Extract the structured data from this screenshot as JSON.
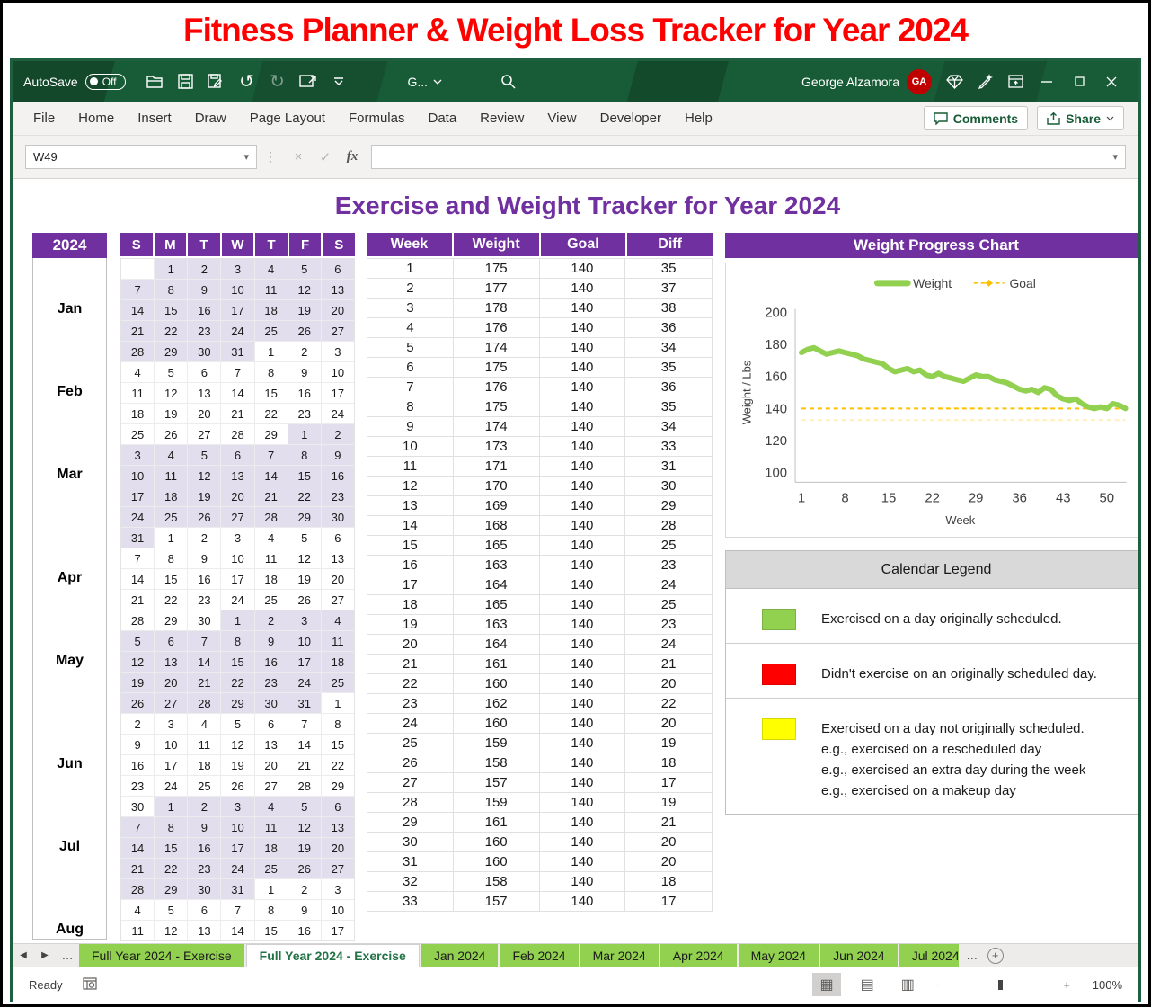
{
  "banner": {
    "title": "Fitness Planner & Weight Loss Tracker for Year 2024"
  },
  "titlebar": {
    "autosave_label": "AutoSave",
    "autosave_state": "Off",
    "doc_name": "G...",
    "user_name": "George Alzamora",
    "user_initials": "GA"
  },
  "icons": {
    "undo": "↺",
    "redo": "↻",
    "dropdown": "▾",
    "cancel": "×",
    "check": "✓",
    "fx": "fx",
    "nav_left": "◀",
    "nav_right": "▶",
    "overflow": "…",
    "add_sheet": "+",
    "view_normal": "▦",
    "view_layout": "▤",
    "view_break": "▥",
    "zoom_out": "−",
    "zoom_in": "+"
  },
  "ribbon": {
    "tabs": [
      "File",
      "Home",
      "Insert",
      "Draw",
      "Page Layout",
      "Formulas",
      "Data",
      "Review",
      "View",
      "Developer",
      "Help"
    ],
    "comments_label": "Comments",
    "share_label": "Share"
  },
  "formula_bar": {
    "name_box": "W49",
    "formula_value": ""
  },
  "sheet": {
    "title": "Exercise and Weight Tracker for Year 2024",
    "year": "2024",
    "weekday_headers": [
      "S",
      "M",
      "T",
      "W",
      "T",
      "F",
      "S"
    ],
    "months": [
      {
        "label": "Jan",
        "row": 2
      },
      {
        "label": "Feb",
        "row": 6
      },
      {
        "label": "Mar",
        "row": 10
      },
      {
        "label": "Apr",
        "row": 15
      },
      {
        "label": "May",
        "row": 19
      },
      {
        "label": "Jun",
        "row": 24
      },
      {
        "label": "Jul",
        "row": 28
      },
      {
        "label": "Aug",
        "row": 32
      }
    ],
    "calendar_rows": [
      {
        "d": [
          null,
          1,
          2,
          3,
          4,
          5,
          6
        ],
        "s": [
          0,
          1,
          1,
          1,
          1,
          1,
          1
        ]
      },
      {
        "d": [
          7,
          8,
          9,
          10,
          11,
          12,
          13
        ],
        "s": [
          1,
          1,
          1,
          1,
          1,
          1,
          1
        ]
      },
      {
        "d": [
          14,
          15,
          16,
          17,
          18,
          19,
          20
        ],
        "s": [
          1,
          1,
          1,
          1,
          1,
          1,
          1
        ]
      },
      {
        "d": [
          21,
          22,
          23,
          24,
          25,
          26,
          27
        ],
        "s": [
          1,
          1,
          1,
          1,
          1,
          1,
          1
        ]
      },
      {
        "d": [
          28,
          29,
          30,
          31,
          1,
          2,
          3
        ],
        "s": [
          1,
          1,
          1,
          1,
          0,
          0,
          0
        ]
      },
      {
        "d": [
          4,
          5,
          6,
          7,
          8,
          9,
          10
        ],
        "s": [
          0,
          0,
          0,
          0,
          0,
          0,
          0
        ]
      },
      {
        "d": [
          11,
          12,
          13,
          14,
          15,
          16,
          17
        ],
        "s": [
          0,
          0,
          0,
          0,
          0,
          0,
          0
        ]
      },
      {
        "d": [
          18,
          19,
          20,
          21,
          22,
          23,
          24
        ],
        "s": [
          0,
          0,
          0,
          0,
          0,
          0,
          0
        ]
      },
      {
        "d": [
          25,
          26,
          27,
          28,
          29,
          1,
          2
        ],
        "s": [
          0,
          0,
          0,
          0,
          0,
          1,
          1
        ]
      },
      {
        "d": [
          3,
          4,
          5,
          6,
          7,
          8,
          9
        ],
        "s": [
          1,
          1,
          1,
          1,
          1,
          1,
          1
        ]
      },
      {
        "d": [
          10,
          11,
          12,
          13,
          14,
          15,
          16
        ],
        "s": [
          1,
          1,
          1,
          1,
          1,
          1,
          1
        ]
      },
      {
        "d": [
          17,
          18,
          19,
          20,
          21,
          22,
          23
        ],
        "s": [
          1,
          1,
          1,
          1,
          1,
          1,
          1
        ]
      },
      {
        "d": [
          24,
          25,
          26,
          27,
          28,
          29,
          30
        ],
        "s": [
          1,
          1,
          1,
          1,
          1,
          1,
          1
        ]
      },
      {
        "d": [
          31,
          1,
          2,
          3,
          4,
          5,
          6
        ],
        "s": [
          1,
          0,
          0,
          0,
          0,
          0,
          0
        ]
      },
      {
        "d": [
          7,
          8,
          9,
          10,
          11,
          12,
          13
        ],
        "s": [
          0,
          0,
          0,
          0,
          0,
          0,
          0
        ]
      },
      {
        "d": [
          14,
          15,
          16,
          17,
          18,
          19,
          20
        ],
        "s": [
          0,
          0,
          0,
          0,
          0,
          0,
          0
        ]
      },
      {
        "d": [
          21,
          22,
          23,
          24,
          25,
          26,
          27
        ],
        "s": [
          0,
          0,
          0,
          0,
          0,
          0,
          0
        ]
      },
      {
        "d": [
          28,
          29,
          30,
          1,
          2,
          3,
          4
        ],
        "s": [
          0,
          0,
          0,
          1,
          1,
          1,
          1
        ]
      },
      {
        "d": [
          5,
          6,
          7,
          8,
          9,
          10,
          11
        ],
        "s": [
          1,
          1,
          1,
          1,
          1,
          1,
          1
        ]
      },
      {
        "d": [
          12,
          13,
          14,
          15,
          16,
          17,
          18
        ],
        "s": [
          1,
          1,
          1,
          1,
          1,
          1,
          1
        ]
      },
      {
        "d": [
          19,
          20,
          21,
          22,
          23,
          24,
          25
        ],
        "s": [
          1,
          1,
          1,
          1,
          1,
          1,
          1
        ]
      },
      {
        "d": [
          26,
          27,
          28,
          29,
          30,
          31,
          1
        ],
        "s": [
          1,
          1,
          1,
          1,
          1,
          1,
          0
        ]
      },
      {
        "d": [
          2,
          3,
          4,
          5,
          6,
          7,
          8
        ],
        "s": [
          0,
          0,
          0,
          0,
          0,
          0,
          0
        ]
      },
      {
        "d": [
          9,
          10,
          11,
          12,
          13,
          14,
          15
        ],
        "s": [
          0,
          0,
          0,
          0,
          0,
          0,
          0
        ]
      },
      {
        "d": [
          16,
          17,
          18,
          19,
          20,
          21,
          22
        ],
        "s": [
          0,
          0,
          0,
          0,
          0,
          0,
          0
        ]
      },
      {
        "d": [
          23,
          24,
          25,
          26,
          27,
          28,
          29
        ],
        "s": [
          0,
          0,
          0,
          0,
          0,
          0,
          0
        ]
      },
      {
        "d": [
          30,
          1,
          2,
          3,
          4,
          5,
          6
        ],
        "s": [
          0,
          1,
          1,
          1,
          1,
          1,
          1
        ]
      },
      {
        "d": [
          7,
          8,
          9,
          10,
          11,
          12,
          13
        ],
        "s": [
          1,
          1,
          1,
          1,
          1,
          1,
          1
        ]
      },
      {
        "d": [
          14,
          15,
          16,
          17,
          18,
          19,
          20
        ],
        "s": [
          1,
          1,
          1,
          1,
          1,
          1,
          1
        ]
      },
      {
        "d": [
          21,
          22,
          23,
          24,
          25,
          26,
          27
        ],
        "s": [
          1,
          1,
          1,
          1,
          1,
          1,
          1
        ]
      },
      {
        "d": [
          28,
          29,
          30,
          31,
          1,
          2,
          3
        ],
        "s": [
          1,
          1,
          1,
          1,
          0,
          0,
          0
        ]
      },
      {
        "d": [
          4,
          5,
          6,
          7,
          8,
          9,
          10
        ],
        "s": [
          0,
          0,
          0,
          0,
          0,
          0,
          0
        ]
      },
      {
        "d": [
          11,
          12,
          13,
          14,
          15,
          16,
          17
        ],
        "s": [
          0,
          0,
          0,
          0,
          0,
          0,
          0
        ]
      }
    ],
    "weight_table": {
      "headers": [
        "Week",
        "Weight",
        "Goal",
        "Diff"
      ],
      "rows": [
        [
          1,
          175,
          140,
          35
        ],
        [
          2,
          177,
          140,
          37
        ],
        [
          3,
          178,
          140,
          38
        ],
        [
          4,
          176,
          140,
          36
        ],
        [
          5,
          174,
          140,
          34
        ],
        [
          6,
          175,
          140,
          35
        ],
        [
          7,
          176,
          140,
          36
        ],
        [
          8,
          175,
          140,
          35
        ],
        [
          9,
          174,
          140,
          34
        ],
        [
          10,
          173,
          140,
          33
        ],
        [
          11,
          171,
          140,
          31
        ],
        [
          12,
          170,
          140,
          30
        ],
        [
          13,
          169,
          140,
          29
        ],
        [
          14,
          168,
          140,
          28
        ],
        [
          15,
          165,
          140,
          25
        ],
        [
          16,
          163,
          140,
          23
        ],
        [
          17,
          164,
          140,
          24
        ],
        [
          18,
          165,
          140,
          25
        ],
        [
          19,
          163,
          140,
          23
        ],
        [
          20,
          164,
          140,
          24
        ],
        [
          21,
          161,
          140,
          21
        ],
        [
          22,
          160,
          140,
          20
        ],
        [
          23,
          162,
          140,
          22
        ],
        [
          24,
          160,
          140,
          20
        ],
        [
          25,
          159,
          140,
          19
        ],
        [
          26,
          158,
          140,
          18
        ],
        [
          27,
          157,
          140,
          17
        ],
        [
          28,
          159,
          140,
          19
        ],
        [
          29,
          161,
          140,
          21
        ],
        [
          30,
          160,
          140,
          20
        ],
        [
          31,
          160,
          140,
          20
        ],
        [
          32,
          158,
          140,
          18
        ],
        [
          33,
          157,
          140,
          17
        ]
      ]
    },
    "legend": {
      "title": "Calendar Legend",
      "items": [
        {
          "color": "#92D050",
          "lines": [
            "Exercised on a day originally scheduled."
          ]
        },
        {
          "color": "#FF0000",
          "lines": [
            "Didn't exercise on an originally scheduled day."
          ]
        },
        {
          "color": "#FFFF00",
          "lines": [
            "Exercised on a day not originally scheduled.",
            "e.g., exercised on a rescheduled day",
            "e.g., exercised an extra day during the week",
            "e.g., exercised on a makeup day"
          ]
        }
      ]
    }
  },
  "chart_data": {
    "type": "line",
    "title": "Weight Progress Chart",
    "xlabel": "Week",
    "ylabel": "Weight / Lbs",
    "ylim": [
      100,
      200
    ],
    "yticks": [
      100,
      120,
      140,
      160,
      180,
      200
    ],
    "xticks": [
      1,
      8,
      15,
      22,
      29,
      36,
      43,
      50
    ],
    "x_range": [
      1,
      53
    ],
    "legend_position": "top",
    "grid": false,
    "series": [
      {
        "name": "Weight",
        "color": "#92D050",
        "style": "solid",
        "values": [
          175,
          177,
          178,
          176,
          174,
          175,
          176,
          175,
          174,
          173,
          171,
          170,
          169,
          168,
          165,
          163,
          164,
          165,
          163,
          164,
          161,
          160,
          162,
          160,
          159,
          158,
          157,
          159,
          161,
          160,
          160,
          158,
          157,
          156,
          154,
          152,
          151,
          152,
          150,
          153,
          152,
          148,
          146,
          145,
          146,
          143,
          141,
          140,
          141,
          140,
          143,
          142,
          140
        ]
      },
      {
        "name": "Goal",
        "color": "#FFC000",
        "style": "dashed",
        "constant": 140
      }
    ]
  },
  "tabs_bar": {
    "sheet_tabs": [
      {
        "label": "Full Year 2024 - Exercise",
        "active": false,
        "clip": false
      },
      {
        "label": "Full Year 2024 - Exercise",
        "active": true,
        "clip": false
      },
      {
        "label": "Jan 2024",
        "active": false,
        "clip": false
      },
      {
        "label": "Feb 2024",
        "active": false,
        "clip": false
      },
      {
        "label": "Mar 2024",
        "active": false,
        "clip": false
      },
      {
        "label": "Apr 2024",
        "active": false,
        "clip": false
      },
      {
        "label": "May 2024",
        "active": false,
        "clip": false
      },
      {
        "label": "Jun 2024",
        "active": false,
        "clip": false
      },
      {
        "label": "Jul 2024",
        "active": false,
        "clip": true
      }
    ]
  },
  "status_bar": {
    "ready": "Ready",
    "zoom": "100%"
  }
}
